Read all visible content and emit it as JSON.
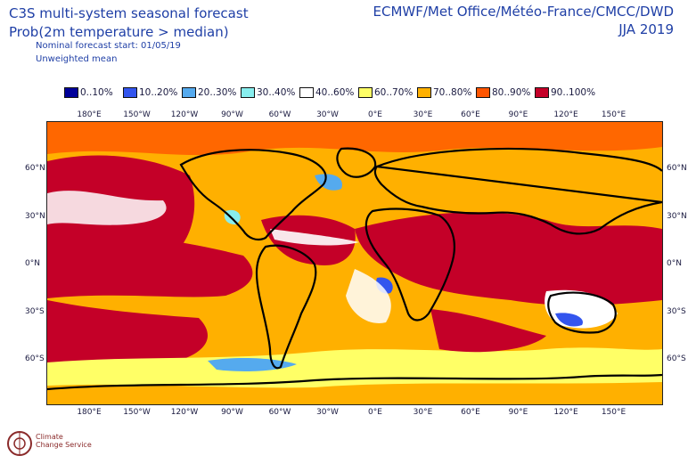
{
  "header": {
    "title": "C3S multi-system seasonal forecast",
    "subtitle": "Prob(2m temperature > median)",
    "forecast_start": "Nominal forecast start: 01/05/19",
    "mean_type": "Unweighted mean",
    "centres": "ECMWF/Met Office/Météo-France/CMCC/DWD",
    "season": "JJA 2019"
  },
  "legend": [
    {
      "label": "0..10%",
      "color": "#000099"
    },
    {
      "label": "10..20%",
      "color": "#3355ee"
    },
    {
      "label": "20..30%",
      "color": "#55aaee"
    },
    {
      "label": "30..40%",
      "color": "#88eeee"
    },
    {
      "label": "40..60%",
      "color": "#ffffff"
    },
    {
      "label": "60..70%",
      "color": "#ffff66"
    },
    {
      "label": "70..80%",
      "color": "#ffb000"
    },
    {
      "label": "80..90%",
      "color": "#ff5500"
    },
    {
      "label": "90..100%",
      "color": "#c40028"
    }
  ],
  "lon_ticks": [
    "180°E",
    "150°W",
    "120°W",
    "90°W",
    "60°W",
    "30°W",
    "0°E",
    "30°E",
    "60°E",
    "90°E",
    "120°E",
    "150°E"
  ],
  "lat_ticks": [
    "60°N",
    "30°N",
    "0°N",
    "30°S",
    "60°S"
  ],
  "logo": {
    "text_line1": "Climate",
    "text_line2": "Change Service"
  }
}
